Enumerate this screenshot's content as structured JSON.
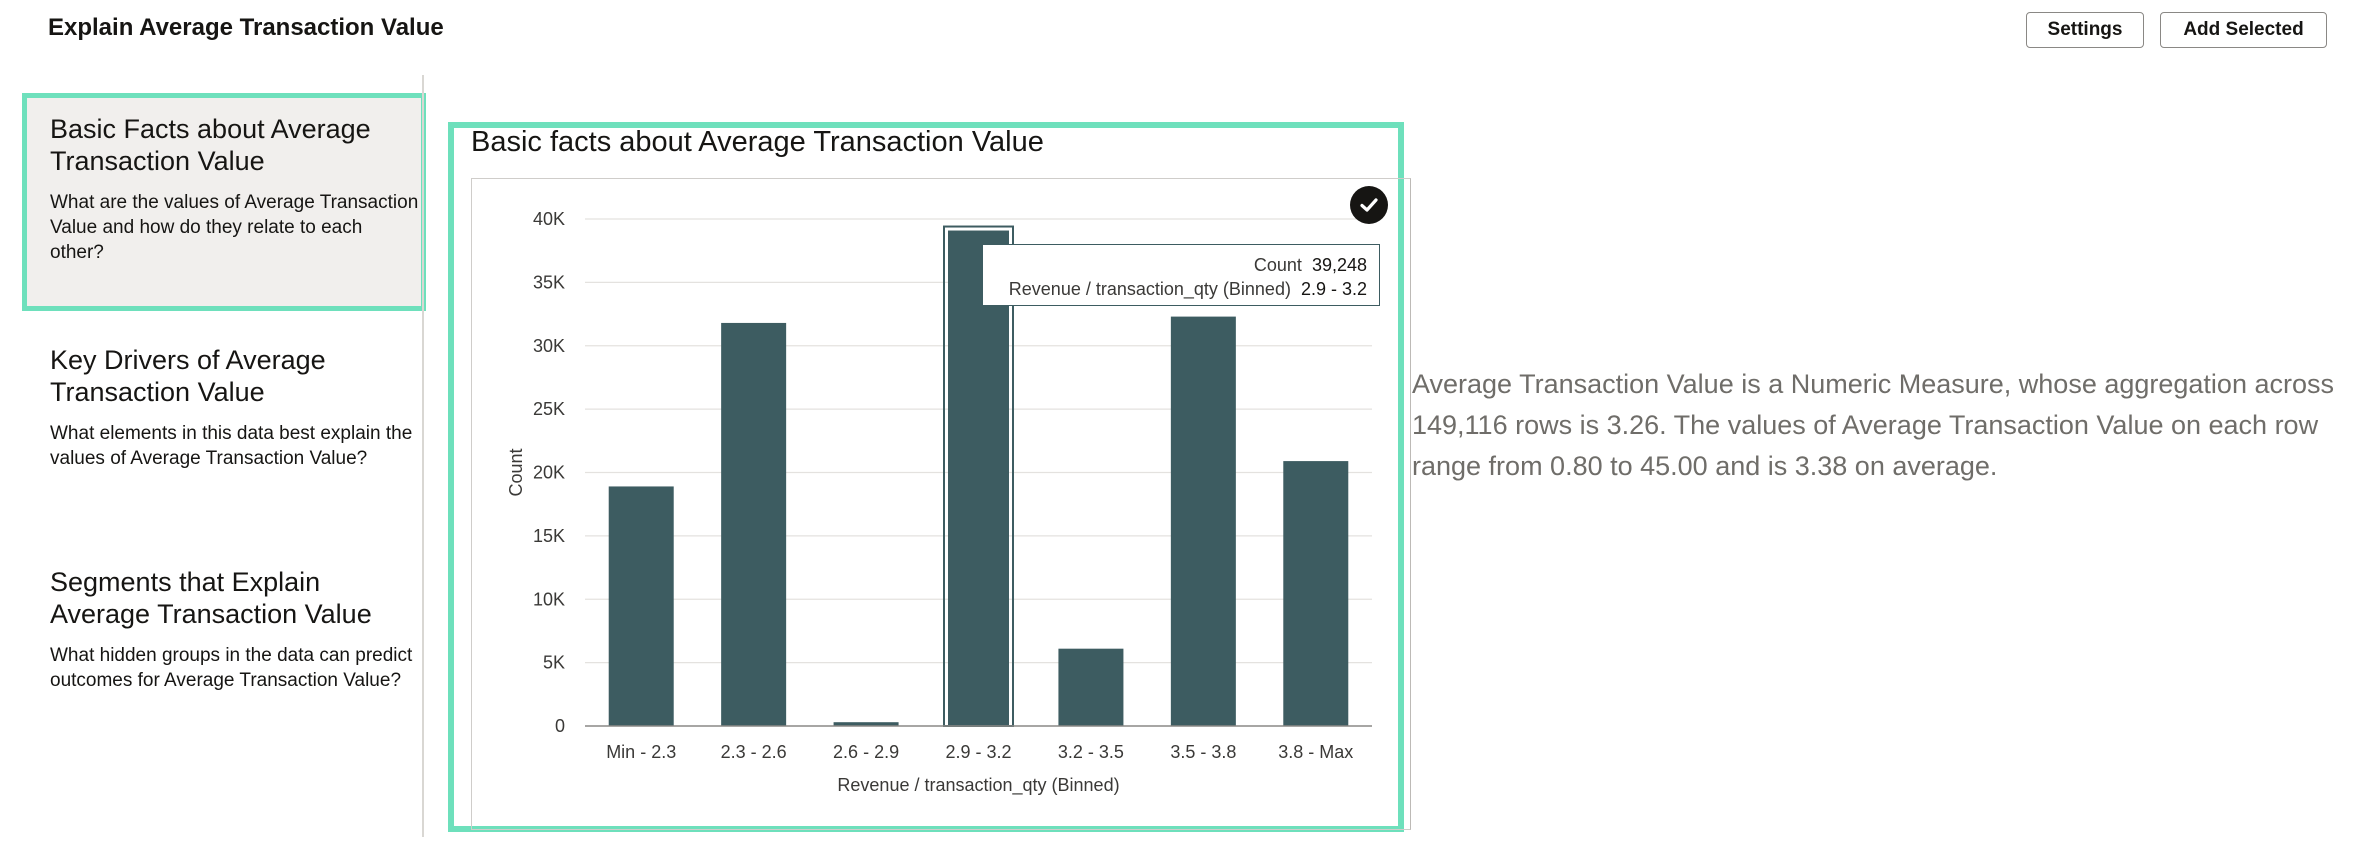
{
  "header": {
    "title": "Explain Average Transaction Value",
    "settings_label": "Settings",
    "add_selected_label": "Add Selected"
  },
  "sidebar": {
    "items": [
      {
        "title": "Basic Facts about Average Transaction Value",
        "description": "What are the values of Average Transaction Value and how do they relate to each other?",
        "selected": true
      },
      {
        "title": "Key Drivers of Average Transaction Value",
        "description": "What elements in this data best explain the values of Average Transaction Value?",
        "selected": false
      },
      {
        "title": "Segments that Explain Average Transaction Value",
        "description": "What hidden groups in the data can predict outcomes for Average Transaction Value?",
        "selected": false
      }
    ]
  },
  "viz": {
    "title": "Basic facts about Average Transaction Value",
    "check_icon": "check-circle-icon"
  },
  "tooltip": {
    "count_label": "Count",
    "count_value": "39,248",
    "bin_label": "Revenue / transaction_qty (Binned)",
    "bin_value": "2.9 - 3.2"
  },
  "insight": {
    "text": "Average Transaction Value is a Numeric Measure, whose aggregation across 149,116 rows is 3.26. The values of Average Transaction Value on each row range from 0.80 to 45.00 and is 3.38 on average."
  },
  "colors": {
    "bar": "#3d5c61",
    "accent": "#6ee0bc",
    "grid": "#e4e2df"
  },
  "chart_data": {
    "type": "bar",
    "categories": [
      "Min - 2.3",
      "2.3 - 2.6",
      "2.6 - 2.9",
      "2.9 - 3.2",
      "3.2 - 3.5",
      "3.5 - 3.8",
      "3.8 - Max"
    ],
    "values": [
      18900,
      31800,
      300,
      39248,
      6100,
      32300,
      20900
    ],
    "xlabel": "Revenue / transaction_qty (Binned)",
    "ylabel": "Count",
    "ylim": [
      0,
      40000
    ],
    "yticks": [
      0,
      5000,
      10000,
      15000,
      20000,
      25000,
      30000,
      35000,
      40000
    ],
    "ytick_labels": [
      "0",
      "5K",
      "10K",
      "15K",
      "20K",
      "25K",
      "30K",
      "35K",
      "40K"
    ],
    "highlighted_category": "2.9 - 3.2",
    "grid": true,
    "legend": "none"
  }
}
